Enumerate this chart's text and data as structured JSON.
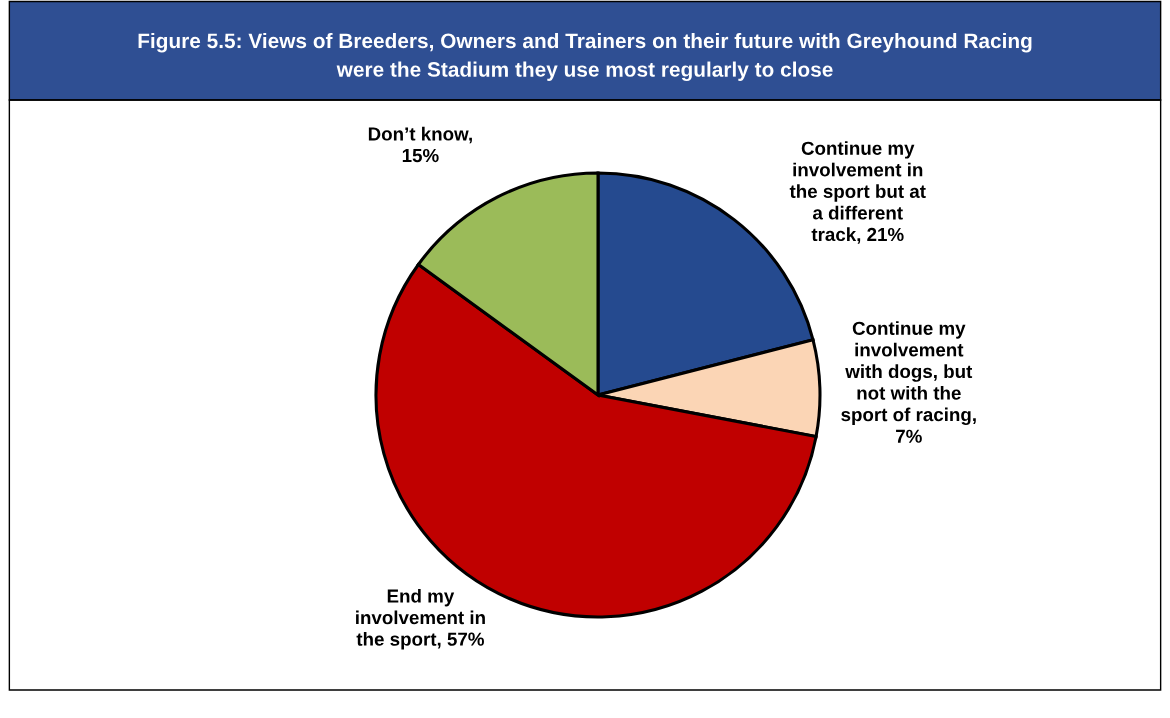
{
  "chart_data": {
    "type": "pie",
    "title": "Figure 5.5: Views of Breeders, Owners and Trainers on their future with Greyhound Racing\nwere the Stadium they use most regularly to close",
    "categories": [
      "Continue my\ninvolvement in\nthe sport but at\na different\ntrack, 21%",
      "Continue my\ninvolvement\nwith dogs, but\nnot with the\nsport of racing,\n7%",
      "End my\ninvolvement in\nthe sport, 57%",
      "Don’t know,\n15%"
    ],
    "values": [
      21,
      7,
      57,
      15
    ],
    "colors": [
      "#254a8f",
      "#fbd5b5",
      "#c00000",
      "#9bbb59"
    ],
    "legend": false
  }
}
